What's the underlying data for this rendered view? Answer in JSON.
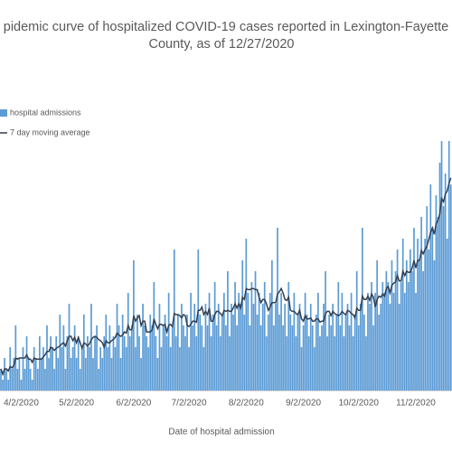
{
  "chart_data": {
    "type": "bar",
    "title": [
      "pidemic curve of hospitalized COVID-19 cases reported in Lexington-Fayette",
      "County, as of 12/27/2020"
    ],
    "x_label": "Date of hospital admission",
    "categories": [
      null,
      null,
      null,
      null,
      null,
      null,
      null,
      null,
      null,
      null,
      null,
      "4/2/2020",
      null,
      null,
      null,
      null,
      null,
      null,
      null,
      null,
      null,
      null,
      null,
      null,
      null,
      null,
      null,
      null,
      null,
      null,
      null,
      null,
      null,
      null,
      null,
      null,
      null,
      null,
      null,
      null,
      null,
      "5/2/2020",
      null,
      null,
      null,
      null,
      null,
      null,
      null,
      null,
      null,
      null,
      null,
      null,
      null,
      null,
      null,
      null,
      null,
      null,
      null,
      null,
      null,
      null,
      null,
      null,
      null,
      null,
      null,
      null,
      null,
      null,
      "6/2/2020",
      null,
      null,
      null,
      null,
      null,
      null,
      null,
      null,
      null,
      null,
      null,
      null,
      null,
      null,
      null,
      null,
      null,
      null,
      null,
      null,
      null,
      null,
      null,
      null,
      null,
      null,
      null,
      null,
      null,
      "7/2/2020",
      null,
      null,
      null,
      null,
      null,
      null,
      null,
      null,
      null,
      null,
      null,
      null,
      null,
      null,
      null,
      null,
      null,
      null,
      null,
      null,
      null,
      null,
      null,
      null,
      null,
      null,
      null,
      null,
      null,
      null,
      "8/2/2020",
      null,
      null,
      null,
      null,
      null,
      null,
      null,
      null,
      null,
      null,
      null,
      null,
      null,
      null,
      null,
      null,
      null,
      null,
      null,
      null,
      null,
      null,
      null,
      null,
      null,
      null,
      null,
      null,
      null,
      null,
      "9/2/2020",
      null,
      null,
      null,
      null,
      null,
      null,
      null,
      null,
      null,
      null,
      null,
      null,
      null,
      null,
      null,
      null,
      null,
      null,
      null,
      null,
      null,
      null,
      null,
      null,
      null,
      null,
      null,
      null,
      null,
      "10/2/2020",
      null,
      null,
      null,
      null,
      null,
      null,
      null,
      null,
      null,
      null,
      null,
      null,
      null,
      null,
      null,
      null,
      null,
      null,
      null,
      null,
      null,
      null,
      null,
      null,
      null,
      null,
      null,
      null,
      null,
      null,
      "11/2/2020",
      null,
      null,
      null,
      null,
      null,
      null,
      null,
      null,
      null,
      null,
      null,
      null,
      null,
      null,
      null,
      null,
      null,
      null,
      null
    ],
    "series": [
      {
        "name": "hospital admissions",
        "type": "bar",
        "color": "#5b9bd5",
        "values": [
          2,
          1,
          3,
          2,
          1,
          4,
          2,
          3,
          6,
          2,
          3,
          1,
          4,
          2,
          5,
          3,
          2,
          1,
          4,
          3,
          2,
          5,
          3,
          4,
          2,
          6,
          3,
          5,
          4,
          2,
          5,
          3,
          7,
          4,
          6,
          2,
          5,
          8,
          3,
          4,
          6,
          3,
          5,
          2,
          4,
          7,
          3,
          5,
          4,
          8,
          3,
          5,
          6,
          2,
          4,
          3,
          5,
          7,
          4,
          6,
          3,
          5,
          4,
          8,
          6,
          3,
          7,
          5,
          4,
          9,
          5,
          6,
          12,
          4,
          7,
          5,
          3,
          8,
          6,
          5,
          4,
          7,
          6,
          10,
          5,
          3,
          8,
          4,
          6,
          7,
          5,
          9,
          4,
          6,
          13,
          5,
          7,
          4,
          8,
          6,
          5,
          7,
          4,
          9,
          6,
          8,
          5,
          13,
          7,
          6,
          4,
          8,
          6,
          9,
          5,
          7,
          10,
          6,
          8,
          5,
          7,
          9,
          6,
          11,
          5,
          8,
          7,
          10,
          6,
          9,
          8,
          12,
          7,
          14,
          9,
          6,
          10,
          8,
          11,
          7,
          9,
          6,
          8,
          10,
          5,
          7,
          9,
          12,
          6,
          8,
          15,
          7,
          9,
          6,
          8,
          5,
          10,
          7,
          6,
          9,
          5,
          7,
          8,
          4,
          6,
          9,
          7,
          5,
          8,
          6,
          4,
          7,
          9,
          5,
          6,
          8,
          11,
          5,
          7,
          6,
          8,
          5,
          7,
          10,
          6,
          9,
          5,
          7,
          8,
          6,
          9,
          5,
          7,
          11,
          6,
          8,
          15,
          7,
          5,
          9,
          8,
          10,
          6,
          9,
          12,
          7,
          8,
          10,
          9,
          11,
          10,
          8,
          12,
          9,
          11,
          13,
          8,
          10,
          14,
          9,
          12,
          10,
          13,
          11,
          15,
          9,
          14,
          12,
          16,
          11,
          14,
          17,
          13,
          19,
          15,
          12,
          18,
          16,
          21,
          23,
          17,
          20,
          14,
          23,
          19
        ]
      },
      {
        "name": "7 day moving average",
        "type": "line",
        "color": "#333f50",
        "values": [
          2.0,
          1.5,
          2.0,
          2.0,
          1.8,
          2.2,
          2.1,
          2.3,
          3.0,
          2.9,
          3.0,
          3.0,
          3.0,
          3.0,
          3.3,
          2.9,
          2.9,
          2.6,
          3.0,
          2.9,
          2.9,
          2.9,
          2.9,
          3.1,
          3.3,
          3.6,
          3.6,
          4.0,
          3.9,
          3.7,
          3.9,
          4.0,
          4.1,
          4.3,
          4.4,
          4.1,
          4.6,
          5.0,
          5.0,
          4.6,
          4.9,
          4.4,
          4.9,
          4.4,
          3.9,
          4.4,
          4.3,
          4.1,
          4.3,
          4.7,
          4.9,
          5.0,
          4.9,
          4.7,
          4.6,
          4.4,
          4.0,
          4.6,
          4.4,
          4.4,
          4.6,
          4.7,
          4.9,
          5.3,
          5.1,
          5.0,
          5.1,
          5.4,
          5.3,
          6.0,
          5.6,
          5.6,
          6.9,
          6.4,
          6.7,
          6.9,
          6.0,
          6.4,
          6.4,
          5.4,
          5.4,
          5.4,
          5.6,
          6.6,
          6.1,
          5.7,
          6.1,
          6.1,
          6.0,
          6.1,
          5.4,
          6.0,
          6.1,
          5.9,
          7.1,
          7.0,
          7.0,
          6.9,
          6.7,
          7.0,
          6.9,
          6.0,
          5.9,
          6.1,
          6.4,
          6.4,
          6.3,
          7.4,
          7.4,
          7.7,
          7.0,
          7.3,
          7.0,
          7.6,
          6.4,
          6.4,
          7.0,
          7.3,
          7.3,
          7.1,
          6.9,
          7.4,
          7.3,
          7.4,
          7.3,
          7.3,
          7.6,
          8.0,
          7.6,
          8.0,
          7.6,
          8.6,
          8.4,
          9.4,
          9.3,
          9.3,
          9.4,
          9.4,
          9.3,
          9.3,
          8.6,
          8.1,
          8.4,
          8.4,
          8.0,
          7.4,
          7.7,
          8.1,
          8.1,
          8.1,
          8.9,
          9.1,
          9.4,
          9.0,
          8.4,
          8.3,
          8.6,
          7.4,
          7.3,
          7.3,
          7.1,
          7.0,
          7.4,
          6.6,
          6.4,
          6.9,
          6.6,
          6.6,
          6.7,
          6.4,
          6.4,
          6.6,
          6.6,
          6.3,
          6.4,
          6.4,
          7.1,
          7.3,
          7.3,
          6.9,
          7.3,
          7.1,
          7.0,
          6.9,
          7.0,
          7.3,
          7.1,
          7.0,
          7.4,
          7.3,
          7.1,
          7.0,
          6.7,
          7.6,
          7.4,
          7.4,
          8.7,
          8.4,
          8.4,
          8.7,
          8.3,
          8.9,
          8.6,
          7.7,
          8.4,
          8.7,
          8.6,
          8.9,
          8.7,
          9.4,
          9.6,
          9.0,
          9.7,
          9.9,
          10.0,
          10.6,
          10.1,
          10.1,
          11.0,
          10.6,
          11.0,
          10.9,
          10.9,
          11.3,
          12.0,
          11.3,
          12.0,
          12.0,
          12.9,
          12.6,
          13.0,
          13.3,
          13.9,
          14.6,
          15.0,
          14.4,
          15.4,
          15.7,
          16.3,
          17.7,
          17.4,
          18.1,
          18.4,
          19.1,
          19.6
        ]
      }
    ],
    "ylim": [
      0,
      25
    ],
    "grid": false,
    "legend": "top-left"
  }
}
